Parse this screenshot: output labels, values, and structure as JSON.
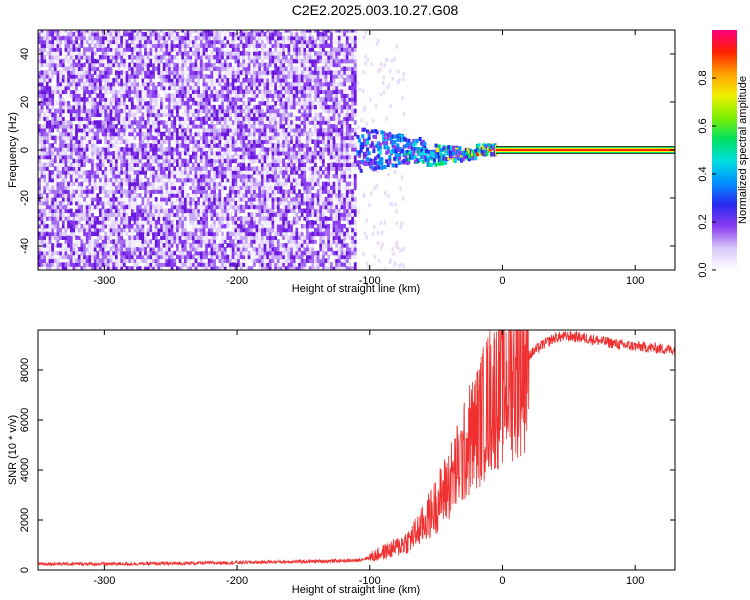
{
  "title": "C2E2.2025.003.10.27.G08",
  "colors": {
    "snr_line": "#f03030",
    "axis": "#000000",
    "spectrum_base": "#7a1fe0",
    "ridge_core": "#e01010"
  },
  "colorbar": {
    "label": "Normalized spectral amplitude",
    "ticks": [
      "0.0",
      "0.2",
      "0.4",
      "0.6",
      "0.8"
    ],
    "tick_values": [
      0.0,
      0.2,
      0.4,
      0.6,
      0.8
    ],
    "range": [
      0.0,
      1.0
    ],
    "palette": [
      "#ffffff",
      "#d8c8f8",
      "#8a3cf0",
      "#2a2af0",
      "#0090ff",
      "#00e0e0",
      "#00e060",
      "#80f000",
      "#f0f000",
      "#ffa000",
      "#ff2000",
      "#ff0080"
    ]
  },
  "chart_data": [
    {
      "type": "heatmap",
      "name": "spectrogram",
      "xlabel": "Height of straight line (km)",
      "ylabel": "Frequency (Hz)",
      "xlim": [
        -350,
        130
      ],
      "ylim": [
        -50,
        50
      ],
      "xticks": [
        -300,
        -200,
        -100,
        0,
        100
      ],
      "yticks": [
        -40,
        -20,
        0,
        20,
        40
      ],
      "noise_region_x": [
        -350,
        -110
      ],
      "ridge_x": [
        -110,
        130
      ],
      "ridge_frequency": 0
    },
    {
      "type": "line",
      "name": "snr",
      "xlabel": "Height of straight line (km)",
      "ylabel": "SNR (10 * v/v)",
      "xlim": [
        -350,
        130
      ],
      "ylim": [
        0,
        9600
      ],
      "xticks": [
        -300,
        -200,
        -100,
        0,
        100
      ],
      "yticks": [
        0,
        2000,
        4000,
        6000,
        8000
      ],
      "x": [
        -350,
        -300,
        -250,
        -200,
        -150,
        -110,
        -100,
        -90,
        -80,
        -70,
        -60,
        -50,
        -40,
        -30,
        -25,
        -20,
        -15,
        -10,
        -5,
        0,
        10,
        20,
        30,
        40,
        50,
        60,
        70,
        80,
        90,
        100,
        110,
        120,
        130
      ],
      "y": [
        250,
        240,
        260,
        300,
        340,
        380,
        500,
        700,
        900,
        1200,
        1800,
        2600,
        3500,
        4500,
        5200,
        5600,
        6200,
        6800,
        7100,
        7400,
        7900,
        8600,
        9000,
        9300,
        9350,
        9300,
        9200,
        9100,
        9000,
        8950,
        8900,
        8850,
        8800
      ]
    }
  ]
}
